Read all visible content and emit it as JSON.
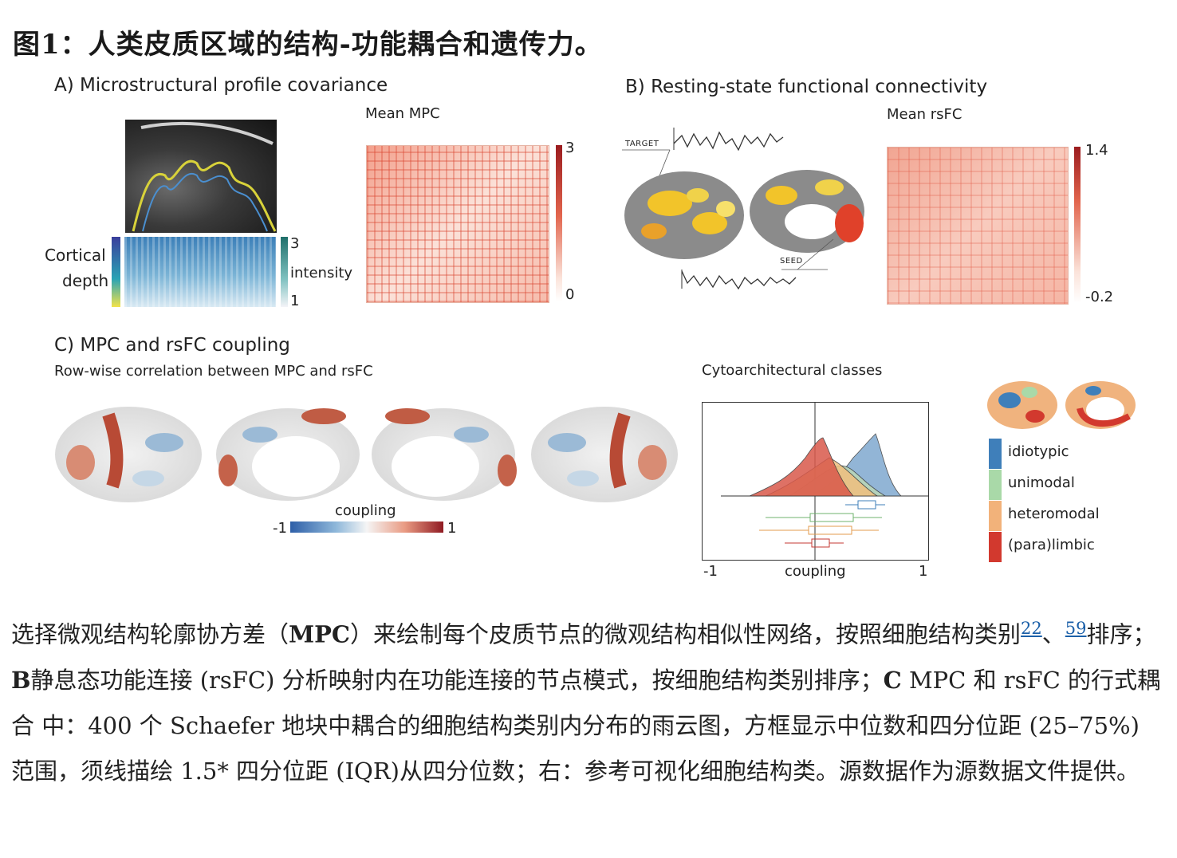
{
  "figure": {
    "title": "图1：人类皮质区域的结构-功能耦合和遗传力。"
  },
  "panel_a": {
    "title": "A) Microstructural profile covariance",
    "heatmap_title": "Mean MPC",
    "scale_max": "3",
    "scale_min": "0",
    "depth_label_1": "Cortical",
    "depth_label_2": "depth",
    "intensity_max": "3",
    "intensity_label": "intensity",
    "intensity_min": "1",
    "colors": {
      "heat": "#d9442f",
      "depth_top": "#3a3e9c",
      "depth_mid": "#2aa3b4",
      "depth_bottom": "#f2e34a"
    }
  },
  "panel_b": {
    "title": "B) Resting-state functional connectivity",
    "heatmap_title": "Mean rsFC",
    "scale_max": "1.4",
    "scale_min": "-0.2",
    "target_label": "TARGET",
    "seed_label": "SEED"
  },
  "panel_c": {
    "title": "C) MPC and rsFC coupling",
    "subtitle": "Row-wise correlation between MPC and rsFC",
    "colorbar_label": "coupling",
    "colorbar_min": "-1",
    "colorbar_max": "1",
    "classes_title": "Cytoarchitectural classes",
    "axis_label": "coupling",
    "axis_min": "-1",
    "axis_max": "1",
    "legend": [
      {
        "label": "idiotypic",
        "color": "#3f7fba"
      },
      {
        "label": "unimodal",
        "color": "#a9d9a8"
      },
      {
        "label": "heteromodal",
        "color": "#f2b27a"
      },
      {
        "label": "(para)limbic",
        "color": "#d2392e"
      }
    ]
  },
  "caption": {
    "p1": "选择微观结构轮廓协方差（",
    "b1": "MPC",
    "p2": "）来绘制每个皮质节点的微观结构相似性网络，按照细胞结构类别",
    "ref1": "22",
    "sep": "、",
    "ref2": "59",
    "p3": "排序；",
    "b2": "B",
    "p4": "静息态功能连接 (rsFC) 分析映射内在功能连接的节点模式，按细胞结构类别排序；",
    "b3": "C",
    "p5": " MPC 和 rsFC 的行式耦合 中：400 个 Schaefer 地块中耦合的细胞结构类别内分布的雨云图，方框显示中位数和四分位距 (25–75%) 范围，须线描绘 1.5* 四分位距 (IQR)从四分位数；右：参考可视化细胞结构类。源数据作为源数据文件提供。"
  }
}
